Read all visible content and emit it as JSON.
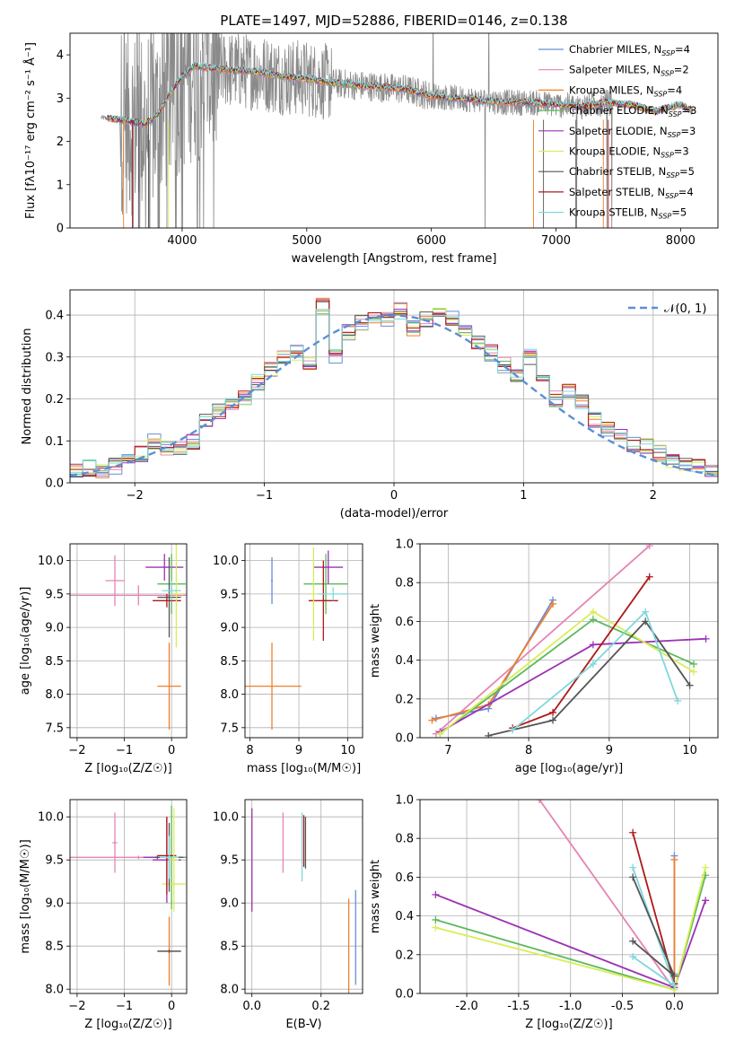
{
  "chart_data": [
    {
      "type": "line",
      "panel": "spectrum",
      "title": "PLATE=1497, MJD=52886, FIBERID=0146, z=0.138",
      "xlabel": "wavelength [Angstrom, rest frame]",
      "ylabel": "Flux [fλ10⁻¹⁷ erg cm⁻² s⁻¹ Å⁻¹]",
      "xlim": [
        3100,
        8300
      ],
      "ylim": [
        0,
        4.5
      ],
      "xticks": [
        4000,
        5000,
        6000,
        7000,
        8000
      ],
      "yticks": [
        0,
        1,
        2,
        3,
        4
      ],
      "legend_location": "upper right",
      "series": [
        {
          "name": "Chabrier MILES, N_SSP=4",
          "color": "#6a8cd8"
        },
        {
          "name": "Salpeter MILES, N_SSP=2",
          "color": "#e584b4"
        },
        {
          "name": "Kroupa MILES, N_SSP=4",
          "color": "#f07f2b"
        },
        {
          "name": "Chabrier ELODIE, N_SSP=3",
          "color": "#5cb85c"
        },
        {
          "name": "Salpeter ELODIE, N_SSP=3",
          "color": "#9b32b4"
        },
        {
          "name": "Kroupa ELODIE, N_SSP=3",
          "color": "#d8ee55"
        },
        {
          "name": "Chabrier STELIB, N_SSP=5",
          "color": "#555555"
        },
        {
          "name": "Salpeter STELIB, N_SSP=4",
          "color": "#b01818"
        },
        {
          "name": "Kroupa STELIB, N_SSP=5",
          "color": "#7fd8dc"
        }
      ],
      "continuum": {
        "x": [
          3350,
          3500,
          3600,
          3700,
          3800,
          3900,
          4000,
          4100,
          4200,
          4400,
          4600,
          4800,
          5000,
          5200,
          5400,
          5600,
          5800,
          6000,
          6200,
          6400,
          6600,
          6800,
          7000,
          7200,
          7400,
          7600,
          7800,
          8000,
          8100
        ],
        "y": [
          2.55,
          2.5,
          2.45,
          2.4,
          2.6,
          3.1,
          3.5,
          3.75,
          3.7,
          3.65,
          3.6,
          3.5,
          3.45,
          3.35,
          3.3,
          3.25,
          3.2,
          3.05,
          3.0,
          2.95,
          2.9,
          2.9,
          2.85,
          2.8,
          2.9,
          2.85,
          2.7,
          2.85,
          2.7
        ]
      }
    },
    {
      "type": "line",
      "panel": "residual histogram",
      "xlabel": "(data-model)/error",
      "ylabel": "Normed distribution",
      "xlim": [
        -2.5,
        2.5
      ],
      "ylim": [
        0,
        0.46
      ],
      "xticks": [
        -2,
        -1,
        0,
        1,
        2
      ],
      "yticks": [
        0.0,
        0.1,
        0.2,
        0.3,
        0.4
      ],
      "legend": [
        "𝒩(0, 1)"
      ],
      "bins": [
        -2.5,
        -2.4,
        -2.3,
        -2.2,
        -2.1,
        -2.0,
        -1.9,
        -1.8,
        -1.7,
        -1.6,
        -1.5,
        -1.4,
        -1.3,
        -1.2,
        -1.1,
        -1.0,
        -0.9,
        -0.8,
        -0.7,
        -0.6,
        -0.5,
        -0.4,
        -0.3,
        -0.2,
        -0.1,
        0.0,
        0.1,
        0.2,
        0.3,
        0.4,
        0.5,
        0.6,
        0.7,
        0.8,
        0.9,
        1.0,
        1.1,
        1.2,
        1.3,
        1.4,
        1.5,
        1.6,
        1.7,
        1.8,
        1.9,
        2.0,
        2.1,
        2.2,
        2.3,
        2.4
      ],
      "density": [
        0.03,
        0.035,
        0.03,
        0.04,
        0.06,
        0.07,
        0.1,
        0.085,
        0.08,
        0.1,
        0.15,
        0.17,
        0.19,
        0.2,
        0.24,
        0.27,
        0.3,
        0.31,
        0.28,
        0.42,
        0.3,
        0.36,
        0.38,
        0.395,
        0.39,
        0.41,
        0.37,
        0.39,
        0.4,
        0.39,
        0.36,
        0.33,
        0.31,
        0.28,
        0.26,
        0.3,
        0.24,
        0.2,
        0.22,
        0.19,
        0.15,
        0.13,
        0.11,
        0.09,
        0.09,
        0.07,
        0.05,
        0.04,
        0.045,
        0.035
      ],
      "normal_pdf_color": "#5b8fd6"
    },
    {
      "type": "scatter",
      "panel": "age vs Z",
      "xlabel": "Z [log₁₀(Z/Z☉)]",
      "ylabel": "age  [log₁₀(age/yr)]",
      "xlim": [
        -2.15,
        0.32
      ],
      "ylim": [
        7.35,
        10.25
      ],
      "xticks": [
        -2,
        -1,
        0
      ],
      "yticks": [
        7.5,
        8.0,
        8.5,
        9.0,
        9.5,
        10.0
      ],
      "points": [
        {
          "x": -0.7,
          "y": 9.48,
          "xerr": 1.5,
          "yerr": 0.15,
          "color": "#e584b4"
        },
        {
          "x": -1.2,
          "y": 9.7,
          "xerr": 0.2,
          "yerr": 0.38,
          "color": "#e584b4"
        },
        {
          "x": -0.15,
          "y": 9.9,
          "xerr": 0.4,
          "yerr": 0.2,
          "color": "#9b32b4"
        },
        {
          "x": 0.0,
          "y": 9.65,
          "xerr": 0.3,
          "yerr": 0.45,
          "color": "#5cb85c"
        },
        {
          "x": -0.05,
          "y": 9.45,
          "xerr": 0.25,
          "yerr": 0.6,
          "color": "#555555"
        },
        {
          "x": -0.1,
          "y": 9.4,
          "xerr": 0.3,
          "yerr": 0.1,
          "color": "#b01818"
        },
        {
          "x": 0.1,
          "y": 9.5,
          "xerr": 0.15,
          "yerr": 0.8,
          "color": "#d8ee55"
        },
        {
          "x": 0.0,
          "y": 9.55,
          "xerr": 0.2,
          "yerr": 0.15,
          "color": "#7fd8dc"
        },
        {
          "x": -0.05,
          "y": 8.12,
          "xerr": 0.25,
          "yerr": 0.65,
          "color": "#f07f2b"
        }
      ]
    },
    {
      "type": "scatter",
      "panel": "age vs mass",
      "xlabel": "mass [log₁₀(M/M☉)]",
      "ylabel": "",
      "xlim": [
        7.9,
        10.3
      ],
      "ylim": [
        7.35,
        10.25
      ],
      "xticks": [
        8,
        9,
        10
      ],
      "yticks": [
        7.5,
        8.0,
        8.5,
        9.0,
        9.5,
        10.0
      ],
      "points": [
        {
          "x": 8.45,
          "y": 8.12,
          "xerr": 0.6,
          "yerr": 0.65,
          "color": "#f07f2b"
        },
        {
          "x": 8.45,
          "y": 9.7,
          "xerr": 0.02,
          "yerr": 0.35,
          "color": "#6a8cd8"
        },
        {
          "x": 9.55,
          "y": 9.65,
          "xerr": 0.45,
          "yerr": 0.45,
          "color": "#5cb85c"
        },
        {
          "x": 9.6,
          "y": 9.9,
          "xerr": 0.3,
          "yerr": 0.25,
          "color": "#9b32b4"
        },
        {
          "x": 9.5,
          "y": 9.4,
          "xerr": 0.3,
          "yerr": 0.6,
          "color": "#b01818"
        },
        {
          "x": 9.7,
          "y": 9.5,
          "xerr": 0.3,
          "yerr": 0.1,
          "color": "#7fd8dc"
        },
        {
          "x": 9.3,
          "y": 9.5,
          "xerr": 0.05,
          "yerr": 0.7,
          "color": "#d8ee55"
        }
      ]
    },
    {
      "type": "line",
      "panel": "mass weight vs age",
      "xlabel": "age  [log₁₀(age/yr)]",
      "ylabel": "mass weight",
      "xlim": [
        6.65,
        10.35
      ],
      "ylim": [
        0,
        1
      ],
      "xticks": [
        7,
        8,
        9,
        10
      ],
      "yticks": [
        0.0,
        0.2,
        0.4,
        0.6,
        0.8,
        1.0
      ],
      "series": [
        {
          "color": "#e584b4",
          "x": [
            6.85,
            9.5
          ],
          "y": [
            0.02,
            0.99
          ]
        },
        {
          "color": "#6a8cd8",
          "x": [
            6.85,
            7.5,
            8.3
          ],
          "y": [
            0.1,
            0.15,
            0.71
          ]
        },
        {
          "color": "#f07f2b",
          "x": [
            6.8,
            7.5,
            8.3
          ],
          "y": [
            0.09,
            0.17,
            0.69
          ]
        },
        {
          "color": "#5cb85c",
          "x": [
            6.9,
            8.8,
            10.05
          ],
          "y": [
            0.02,
            0.61,
            0.38
          ]
        },
        {
          "color": "#9b32b4",
          "x": [
            6.9,
            8.8,
            10.2
          ],
          "y": [
            0.03,
            0.48,
            0.51
          ]
        },
        {
          "color": "#d8ee55",
          "x": [
            6.9,
            8.8,
            10.05
          ],
          "y": [
            0.02,
            0.65,
            0.34
          ]
        },
        {
          "color": "#555555",
          "x": [
            7.5,
            8.3,
            9.45,
            10.0
          ],
          "y": [
            0.01,
            0.09,
            0.6,
            0.27
          ]
        },
        {
          "color": "#b01818",
          "x": [
            7.8,
            8.3,
            9.5
          ],
          "y": [
            0.05,
            0.13,
            0.83
          ]
        },
        {
          "color": "#7fd8dc",
          "x": [
            7.8,
            8.8,
            9.45,
            9.85
          ],
          "y": [
            0.04,
            0.38,
            0.65,
            0.19
          ]
        }
      ]
    },
    {
      "type": "scatter",
      "panel": "mass vs Z",
      "xlabel": "Z [log₁₀(Z/Z☉)]",
      "ylabel": "mass [log₁₀(M/M☉)]",
      "xlim": [
        -2.15,
        0.32
      ],
      "ylim": [
        7.95,
        10.2
      ],
      "xticks": [
        -2,
        -1,
        0
      ],
      "yticks": [
        8.0,
        8.5,
        9.0,
        9.5,
        10.0
      ],
      "points": [
        {
          "x": -0.7,
          "y": 9.53,
          "xerr": 1.6,
          "yerr": 0.02,
          "color": "#e584b4"
        },
        {
          "x": -1.2,
          "y": 9.7,
          "xerr": 0.05,
          "yerr": 0.35,
          "color": "#e584b4"
        },
        {
          "x": -0.3,
          "y": 9.53,
          "xerr": 0.3,
          "yerr": 0.02,
          "color": "#9b32b4"
        },
        {
          "x": 0.0,
          "y": 9.53,
          "xerr": 0.3,
          "yerr": 0.6,
          "color": "#5cb85c"
        },
        {
          "x": -0.1,
          "y": 9.5,
          "xerr": 0.3,
          "yerr": 0.5,
          "color": "#9b32b4"
        },
        {
          "x": 0.05,
          "y": 9.22,
          "xerr": 0.25,
          "yerr": 0.05,
          "color": "#d8ee55"
        },
        {
          "x": -0.05,
          "y": 9.53,
          "xerr": 0.3,
          "yerr": 0.4,
          "color": "#555555"
        },
        {
          "x": -0.1,
          "y": 9.55,
          "xerr": 0.2,
          "yerr": 0.45,
          "color": "#b01818"
        },
        {
          "x": -0.05,
          "y": 9.53,
          "xerr": 0.2,
          "yerr": 0.25,
          "color": "#7fd8dc"
        },
        {
          "x": 0.05,
          "y": 9.5,
          "xerr": 0.1,
          "yerr": 0.6,
          "color": "#d8ee55"
        },
        {
          "x": -0.05,
          "y": 8.44,
          "xerr": 0.25,
          "yerr": 0.4,
          "color": "#f07f2b"
        },
        {
          "x": -0.05,
          "y": 8.44,
          "xerr": 0.25,
          "yerr": 0.02,
          "color": "#555555"
        }
      ]
    },
    {
      "type": "scatter",
      "panel": "mass vs E(B-V)",
      "xlabel": "E(B-V)",
      "ylabel": "",
      "xlim": [
        -0.02,
        0.32
      ],
      "ylim": [
        7.95,
        10.2
      ],
      "xticks": [
        0.0,
        0.2
      ],
      "yticks": [
        8.0,
        8.5,
        9.0,
        9.5,
        10.0
      ],
      "points": [
        {
          "x": 0.0,
          "y": 9.5,
          "yerr": 0.6,
          "color": "#d8ee55"
        },
        {
          "x": 0.0,
          "y": 9.5,
          "yerr": 0.6,
          "color": "#9b32b4"
        },
        {
          "x": 0.09,
          "y": 9.7,
          "yerr": 0.35,
          "color": "#e584b4"
        },
        {
          "x": 0.145,
          "y": 9.65,
          "yerr": 0.4,
          "color": "#7fd8dc"
        },
        {
          "x": 0.15,
          "y": 9.72,
          "yerr": 0.3,
          "color": "#b01818"
        },
        {
          "x": 0.155,
          "y": 9.7,
          "yerr": 0.3,
          "color": "#555555"
        },
        {
          "x": 0.28,
          "y": 8.5,
          "yerr": 0.55,
          "color": "#f07f2b"
        },
        {
          "x": 0.3,
          "y": 8.6,
          "yerr": 0.55,
          "color": "#6a8cd8"
        }
      ]
    },
    {
      "type": "line",
      "panel": "mass weight vs Z",
      "xlabel": "Z [log₁₀(Z/Z☉)]",
      "ylabel": "mass weight",
      "xlim": [
        -2.45,
        0.42
      ],
      "ylim": [
        0,
        1
      ],
      "xticks": [
        -2.0,
        -1.5,
        -1.0,
        -0.5,
        0.0
      ],
      "yticks": [
        0.0,
        0.2,
        0.4,
        0.6,
        0.8,
        1.0
      ],
      "series": [
        {
          "color": "#e584b4",
          "x": [
            -1.3,
            0.0
          ],
          "y": [
            1.0,
            0.02
          ]
        },
        {
          "color": "#9b32b4",
          "x": [
            -2.3,
            0.0,
            0.3
          ],
          "y": [
            0.51,
            0.03,
            0.48
          ]
        },
        {
          "color": "#5cb85c",
          "x": [
            -2.3,
            0.0,
            0.3
          ],
          "y": [
            0.38,
            0.02,
            0.61
          ]
        },
        {
          "color": "#d8ee55",
          "x": [
            -2.3,
            0.0,
            0.3
          ],
          "y": [
            0.34,
            0.02,
            0.65
          ]
        },
        {
          "color": "#b01818",
          "x": [
            -0.4,
            0.0
          ],
          "y": [
            0.83,
            0.05
          ]
        },
        {
          "color": "#6a8cd8",
          "x": [
            0.0,
            0.0
          ],
          "y": [
            0.71,
            0.1
          ]
        },
        {
          "color": "#f07f2b",
          "x": [
            0.0,
            0.0
          ],
          "y": [
            0.69,
            0.09
          ]
        },
        {
          "color": "#7fd8dc",
          "x": [
            -0.4,
            0.0,
            -0.4,
            0.0
          ],
          "y": [
            0.65,
            0.04,
            0.19,
            0.04
          ]
        },
        {
          "color": "#555555",
          "x": [
            -0.4,
            0.0,
            -0.4
          ],
          "y": [
            0.6,
            0.09,
            0.27
          ]
        }
      ]
    }
  ]
}
